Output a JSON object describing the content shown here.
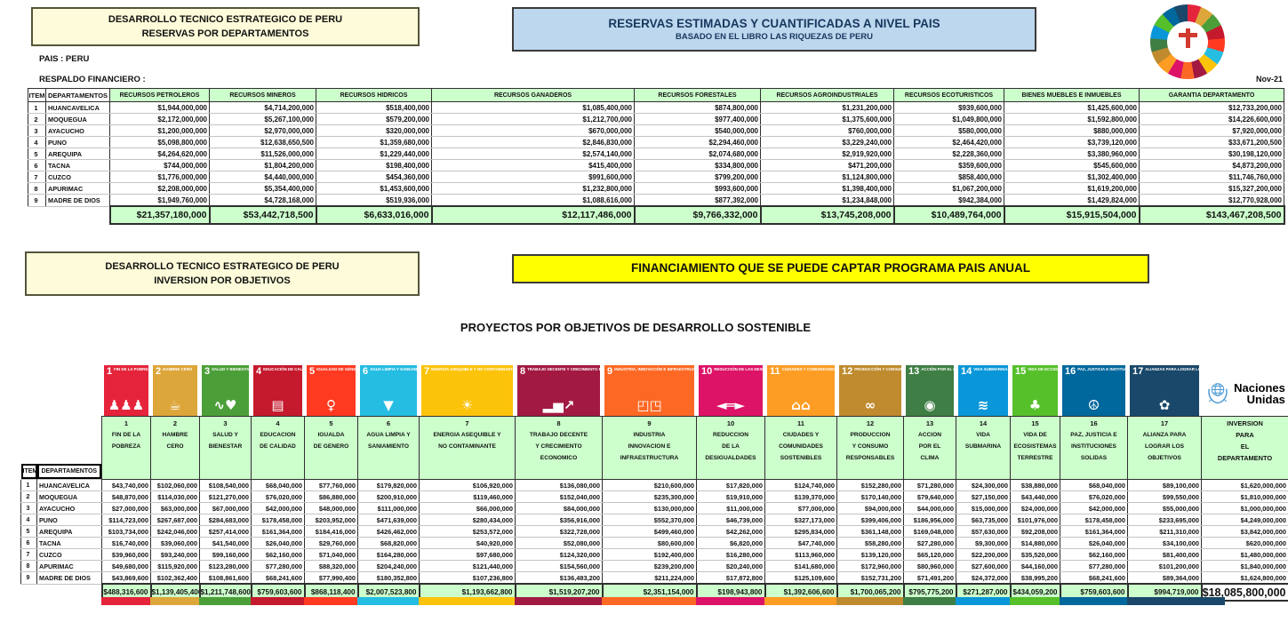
{
  "meta": {
    "date_label": "Nov-21"
  },
  "top_left_box": {
    "line1": "DESARROLLO TECNICO ESTRATEGICO DE PERU",
    "line2": "RESERVAS POR DEPARTAMENTOS"
  },
  "top_right_box": {
    "line1": "RESERVAS ESTIMADAS Y CUANTIFICADAS A NIVEL PAIS",
    "line2": "BASADO EN EL LIBRO LAS RIQUEZAS DE PERU"
  },
  "labels": {
    "pais": "PAIS : PERU",
    "respaldo": "RESPALDO FINANCIERO :"
  },
  "mid_left_box": {
    "line1": "DESARROLLO TECNICO ESTRATEGICO DE PERU",
    "line2": "INVERSION POR OBJETIVOS"
  },
  "mid_banner": "FINANCIAMIENTO QUE SE PUEDE CAPTAR  PROGRAMA PAIS ANUAL",
  "sdg_title": "PROYECTOS POR OBJETIVOS DE DESARROLLO SOSTENIBLE",
  "un_logo": {
    "line1": "Naciones",
    "line2": "Unidas"
  },
  "reserves_table": {
    "columns": [
      "ITEM",
      "DEPARTAMENTOS",
      "RECURSOS PETROLEROS",
      "RECURSOS MINEROS",
      "RECURSOS HIDRICOS",
      "RECURSOS GANADEROS",
      "RECURSOS FORESTALES",
      "RECURSOS AGROINDUSTRIALES",
      "RECURSOS ECOTURISTICOS",
      "BIENES MUEBLES E INMUEBLES",
      "GARANTIA DEPARTAMENTO"
    ],
    "rows": [
      {
        "item": "1",
        "dept": "HUANCAVELICA",
        "values": [
          "$1,944,000,000",
          "$4,714,200,000",
          "$518,400,000",
          "$1,085,400,000",
          "$874,800,000",
          "$1,231,200,000",
          "$939,600,000",
          "$1,425,600,000",
          "$12,733,200,000"
        ]
      },
      {
        "item": "2",
        "dept": "MOQUEGUA",
        "values": [
          "$2,172,000,000",
          "$5,267,100,000",
          "$579,200,000",
          "$1,212,700,000",
          "$977,400,000",
          "$1,375,600,000",
          "$1,049,800,000",
          "$1,592,800,000",
          "$14,226,600,000"
        ]
      },
      {
        "item": "3",
        "dept": "AYACUCHO",
        "values": [
          "$1,200,000,000",
          "$2,970,000,000",
          "$320,000,000",
          "$670,000,000",
          "$540,000,000",
          "$760,000,000",
          "$580,000,000",
          "$880,000,000",
          "$7,920,000,000"
        ]
      },
      {
        "item": "4",
        "dept": "PUNO",
        "values": [
          "$5,098,800,000",
          "$12,638,650,500",
          "$1,359,680,000",
          "$2,846,830,000",
          "$2,294,460,000",
          "$3,229,240,000",
          "$2,464,420,000",
          "$3,739,120,000",
          "$33,671,200,500"
        ]
      },
      {
        "item": "5",
        "dept": "AREQUIPA",
        "values": [
          "$4,264,620,000",
          "$11,526,000,000",
          "$1,229,440,000",
          "$2,574,140,000",
          "$2,074,680,000",
          "$2,919,920,000",
          "$2,228,360,000",
          "$3,380,960,000",
          "$30,198,120,000"
        ]
      },
      {
        "item": "6",
        "dept": "TACNA",
        "values": [
          "$744,000,000",
          "$1,804,200,000",
          "$198,400,000",
          "$415,400,000",
          "$334,800,000",
          "$471,200,000",
          "$359,600,000",
          "$545,600,000",
          "$4,873,200,000"
        ]
      },
      {
        "item": "7",
        "dept": "CUZCO",
        "values": [
          "$1,776,000,000",
          "$4,440,000,000",
          "$454,360,000",
          "$991,600,000",
          "$799,200,000",
          "$1,124,800,000",
          "$858,400,000",
          "$1,302,400,000",
          "$11,746,760,000"
        ]
      },
      {
        "item": "8",
        "dept": "APURIMAC",
        "values": [
          "$2,208,000,000",
          "$5,354,400,000",
          "$1,453,600,000",
          "$1,232,800,000",
          "$993,600,000",
          "$1,398,400,000",
          "$1,067,200,000",
          "$1,619,200,000",
          "$15,327,200,000"
        ]
      },
      {
        "item": "9",
        "dept": "MADRE DE DIOS",
        "values": [
          "$1,949,760,000",
          "$4,728,168,000",
          "$519,936,000",
          "$1,088,616,000",
          "$877,392,000",
          "$1,234,848,000",
          "$942,384,000",
          "$1,429,824,000",
          "$12,770,928,000"
        ]
      }
    ],
    "totals": [
      "$21,357,180,000",
      "$53,442,718,500",
      "$6,633,016,000",
      "$12,117,486,000",
      "$9,766,332,000",
      "$13,745,208,000",
      "$10,489,764,000",
      "$15,915,504,000",
      "$143,467,208,500"
    ]
  },
  "sdgs": [
    {
      "num": "1",
      "color": "#E5243B",
      "tile_title": "FIN DE LA POBREZA",
      "glyph": "♟♟♟",
      "label_lines": [
        "FIN DE LA",
        "POBREZA",
        ""
      ]
    },
    {
      "num": "2",
      "color": "#DDA63A",
      "tile_title": "HAMBRE CERO",
      "glyph": "☕",
      "label_lines": [
        "HAMBRE",
        "CERO",
        ""
      ]
    },
    {
      "num": "3",
      "color": "#4C9F38",
      "tile_title": "SALUD Y BIENESTAR",
      "glyph": "∿♥",
      "label_lines": [
        "SALUD Y",
        "BIENESTAR",
        ""
      ]
    },
    {
      "num": "4",
      "color": "#C5192D",
      "tile_title": "EDUCACIÓN DE CALIDAD",
      "glyph": "▤",
      "label_lines": [
        "EDUCACION",
        "DE CALIDAD",
        ""
      ]
    },
    {
      "num": "5",
      "color": "#FF3A21",
      "tile_title": "IGUALDAD DE GÉNERO",
      "glyph": "♀",
      "label_lines": [
        "IGUALDA",
        "DE GENERO",
        ""
      ]
    },
    {
      "num": "6",
      "color": "#26BDE2",
      "tile_title": "AGUA LIMPIA Y SANEAMIENTO",
      "glyph": "▼",
      "label_lines": [
        "AGUA LIMPIA Y",
        "SANIAMIENTO",
        ""
      ]
    },
    {
      "num": "7",
      "color": "#FCC30B",
      "tile_title": "ENERGÍA ASEQUIBLE Y NO CONTAMINANTE",
      "glyph": "☀",
      "label_lines": [
        "ENERGIA ASEQUIBLE Y",
        "NO CONTAMINANTE",
        ""
      ]
    },
    {
      "num": "8",
      "color": "#A21942",
      "tile_title": "TRABAJO DECENTE Y CRECIMIENTO ECONÓMICO",
      "glyph": "▂▅↗",
      "label_lines": [
        "TRABAJO DECENTE",
        "Y CRECIMIENTO",
        "ECONOMICO"
      ]
    },
    {
      "num": "9",
      "color": "#FD6925",
      "tile_title": "INDUSTRIA, INNOVACIÓN E INFRAESTRUCTURA",
      "glyph": "◰◳",
      "label_lines": [
        "INDUSTRIA",
        "INNOVACION E",
        "INFRAESTRUCTURA"
      ]
    },
    {
      "num": "10",
      "color": "#DD1367",
      "tile_title": "REDUCCIÓN DE LAS DESIGUALDADES",
      "glyph": "◄═►",
      "label_lines": [
        "REDUCCION",
        "DE LA",
        "DESIGUALDADES"
      ]
    },
    {
      "num": "11",
      "color": "#FD9D24",
      "tile_title": "CIUDADES Y COMUNIDADES SOSTENIBLES",
      "glyph": "⌂⌂",
      "label_lines": [
        "CIUDADES Y",
        "COMUNIDADES",
        "SOSTENIBLES"
      ]
    },
    {
      "num": "12",
      "color": "#BF8B2E",
      "tile_title": "PRODUCCIÓN Y CONSUMO RESPONSABLES",
      "glyph": "∞",
      "label_lines": [
        "PRODUCCION",
        "Y CONSUMO",
        "RESPONSABLES"
      ]
    },
    {
      "num": "13",
      "color": "#3F7E44",
      "tile_title": "ACCIÓN POR EL CLIMA",
      "glyph": "◉",
      "label_lines": [
        "ACCION",
        "POR EL",
        "CLIMA"
      ]
    },
    {
      "num": "14",
      "color": "#0A97D9",
      "tile_title": "VIDA SUBMARINA",
      "glyph": "≋",
      "label_lines": [
        "VIDA",
        "SUBMARINA",
        ""
      ]
    },
    {
      "num": "15",
      "color": "#56C02B",
      "tile_title": "VIDA DE ECOSISTEMAS TERRESTRES",
      "glyph": "♣",
      "label_lines": [
        "VIDA DE",
        "ECOSISTEMAS",
        "TERRESTRE"
      ]
    },
    {
      "num": "16",
      "color": "#00689D",
      "tile_title": "PAZ, JUSTICIA E INSTITUCIONES SÓLIDAS",
      "glyph": "☮",
      "label_lines": [
        "PAZ, JUSTICIA E",
        "INSTITUCIONES",
        "SOLIDAS"
      ]
    },
    {
      "num": "17",
      "color": "#19486A",
      "tile_title": "ALIANZAS PARA LOGRAR LOS OBJETIVOS",
      "glyph": "✿",
      "label_lines": [
        "ALIANZA PARA",
        "LOGRAR LOS",
        "OBJETIVOS"
      ]
    }
  ],
  "projects_table": {
    "item_header": "ITEM",
    "dept_header": "DEPARTAMENTOS",
    "investment_header": [
      "INVERSION",
      "PARA",
      "EL",
      "DEPARTAMENTO"
    ],
    "rows": [
      {
        "item": "1",
        "dept": "HUANCAVELICA",
        "values": [
          "$43,740,000",
          "$102,060,000",
          "$108,540,000",
          "$68,040,000",
          "$77,760,000",
          "$179,820,000",
          "$106,920,000",
          "$136,080,000",
          "$210,600,000",
          "$17,820,000",
          "$124,740,000",
          "$152,280,000",
          "$71,280,000",
          "$24,300,000",
          "$38,880,000",
          "$68,040,000",
          "$89,100,000"
        ],
        "total": "$1,620,000,000"
      },
      {
        "item": "2",
        "dept": "MOQUEGUA",
        "values": [
          "$48,870,000",
          "$114,030,000",
          "$121,270,000",
          "$76,020,000",
          "$86,880,000",
          "$200,910,000",
          "$119,460,000",
          "$152,040,000",
          "$235,300,000",
          "$19,910,000",
          "$139,370,000",
          "$170,140,000",
          "$79,640,000",
          "$27,150,000",
          "$43,440,000",
          "$76,020,000",
          "$99,550,000"
        ],
        "total": "$1,810,000,000"
      },
      {
        "item": "3",
        "dept": "AYACUCHO",
        "values": [
          "$27,000,000",
          "$63,000,000",
          "$67,000,000",
          "$42,000,000",
          "$48,000,000",
          "$111,000,000",
          "$66,000,000",
          "$84,000,000",
          "$130,000,000",
          "$11,000,000",
          "$77,000,000",
          "$94,000,000",
          "$44,000,000",
          "$15,000,000",
          "$24,000,000",
          "$42,000,000",
          "$55,000,000"
        ],
        "total": "$1,000,000,000"
      },
      {
        "item": "4",
        "dept": "PUNO",
        "values": [
          "$114,723,000",
          "$267,687,000",
          "$284,683,000",
          "$178,458,000",
          "$203,952,000",
          "$471,639,000",
          "$280,434,000",
          "$356,916,000",
          "$552,370,000",
          "$46,739,000",
          "$327,173,000",
          "$399,406,000",
          "$186,956,000",
          "$63,735,000",
          "$101,976,000",
          "$178,458,000",
          "$233,695,000"
        ],
        "total": "$4,249,000,000"
      },
      {
        "item": "5",
        "dept": "AREQUIPA",
        "values": [
          "$103,734,000",
          "$242,046,000",
          "$257,414,000",
          "$161,364,000",
          "$184,416,000",
          "$426,462,000",
          "$253,572,000",
          "$322,728,000",
          "$499,460,000",
          "$42,262,000",
          "$295,834,000",
          "$361,148,000",
          "$169,048,000",
          "$57,630,000",
          "$92,208,000",
          "$161,364,000",
          "$211,310,000"
        ],
        "total": "$3,842,000,000"
      },
      {
        "item": "6",
        "dept": "TACNA",
        "values": [
          "$16,740,000",
          "$39,060,000",
          "$41,540,000",
          "$26,040,000",
          "$29,760,000",
          "$68,820,000",
          "$40,920,000",
          "$52,080,000",
          "$80,600,000",
          "$6,820,000",
          "$47,740,000",
          "$58,280,000",
          "$27,280,000",
          "$9,300,000",
          "$14,880,000",
          "$26,040,000",
          "$34,100,000"
        ],
        "total": "$620,000,000"
      },
      {
        "item": "7",
        "dept": "CUZCO",
        "values": [
          "$39,960,000",
          "$93,240,000",
          "$99,160,000",
          "$62,160,000",
          "$71,040,000",
          "$164,280,000",
          "$97,680,000",
          "$124,320,000",
          "$192,400,000",
          "$16,280,000",
          "$113,960,000",
          "$139,120,000",
          "$65,120,000",
          "$22,200,000",
          "$35,520,000",
          "$62,160,000",
          "$81,400,000"
        ],
        "total": "$1,480,000,000"
      },
      {
        "item": "8",
        "dept": "APURIMAC",
        "values": [
          "$49,680,000",
          "$115,920,000",
          "$123,280,000",
          "$77,280,000",
          "$88,320,000",
          "$204,240,000",
          "$121,440,000",
          "$154,560,000",
          "$239,200,000",
          "$20,240,000",
          "$141,680,000",
          "$172,960,000",
          "$80,960,000",
          "$27,600,000",
          "$44,160,000",
          "$77,280,000",
          "$101,200,000"
        ],
        "total": "$1,840,000,000"
      },
      {
        "item": "9",
        "dept": "MADRE DE DIOS",
        "values": [
          "$43,869,600",
          "$102,362,400",
          "$108,861,600",
          "$68,241,600",
          "$77,990,400",
          "$180,352,800",
          "$107,236,800",
          "$136,483,200",
          "$211,224,000",
          "$17,872,800",
          "$125,109,600",
          "$152,731,200",
          "$71,491,200",
          "$24,372,000",
          "$38,995,200",
          "$68,241,600",
          "$89,364,000"
        ],
        "total": "$1,624,800,000"
      }
    ],
    "totals": [
      "$488,316,600",
      "$1,139,405,400",
      "$1,211,748,600",
      "$759,603,600",
      "$868,118,400",
      "$2,007,523,800",
      "$1,193,662,800",
      "$1,519,207,200",
      "$2,351,154,000",
      "$198,943,800",
      "$1,392,606,600",
      "$1,700,065,200",
      "$795,775,200",
      "$271,287,000",
      "$434,059,200",
      "$759,603,600",
      "$994,719,000"
    ],
    "grand_total": "$18,085,800,000"
  }
}
